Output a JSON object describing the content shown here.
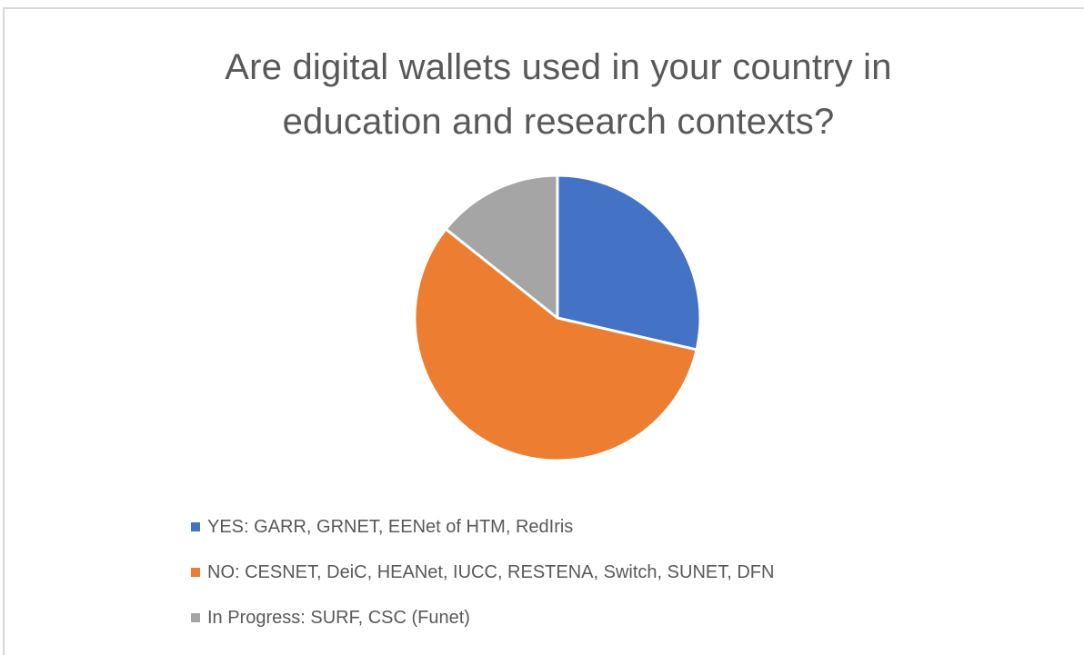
{
  "chart_data": {
    "type": "pie",
    "title": [
      "Are digital wallets used in your country in",
      "education and research contexts?"
    ],
    "categories": [
      "YES: GARR, GRNET, EENet of HTM, RedIris",
      "NO: CESNET, DeiC, HEANet, IUCC, RESTENA, Switch, SUNET, DFN",
      "In Progress: SURF, CSC (Funet)"
    ],
    "values": [
      4,
      8,
      2
    ],
    "colors": [
      "#4472c4",
      "#ed7d31",
      "#a5a5a5"
    ],
    "legend_position": "bottom-left",
    "start_angle_deg": 0,
    "direction": "clockwise"
  }
}
